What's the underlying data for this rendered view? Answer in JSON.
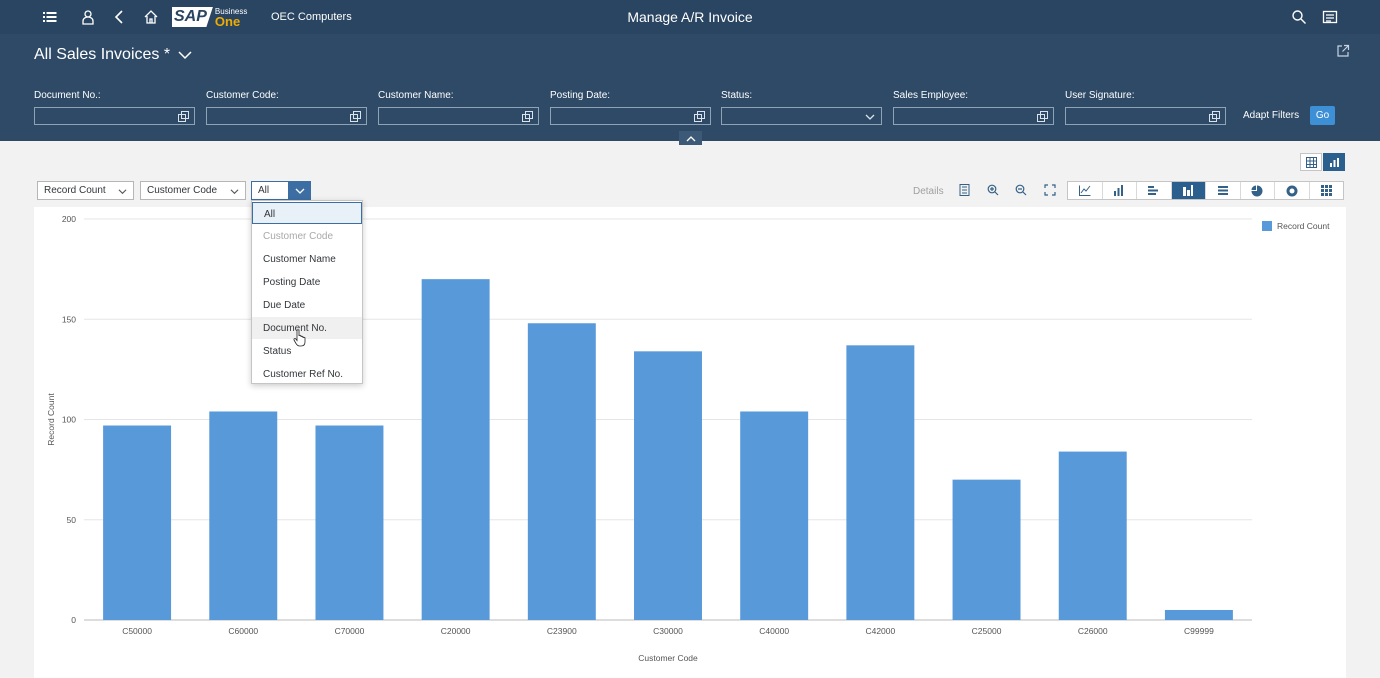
{
  "shell": {
    "logo_main": "SAP",
    "logo_business": "Business",
    "logo_one": "One",
    "company": "OEC Computers",
    "title": "Manage A/R Invoice"
  },
  "variant": {
    "title": "All Sales Invoices *"
  },
  "filters": [
    {
      "label": "Document No.:",
      "value": ""
    },
    {
      "label": "Customer Code:",
      "value": ""
    },
    {
      "label": "Customer Name:",
      "value": ""
    },
    {
      "label": "Posting Date:",
      "value": ""
    },
    {
      "label": "Status:",
      "value": ""
    },
    {
      "label": "Sales Employee:",
      "value": ""
    },
    {
      "label": "User Signature:",
      "value": ""
    }
  ],
  "filterbar": {
    "adapt_label": "Adapt Filters",
    "go_label": "Go"
  },
  "chart_toolbar": {
    "measure": "Record Count",
    "dimension": "Customer Code",
    "third": "All",
    "details_label": "Details"
  },
  "dropdown_options": [
    "All",
    "Customer Code",
    "Customer Name",
    "Posting Date",
    "Due Date",
    "Document No.",
    "Status",
    "Customer Ref No."
  ],
  "colors": {
    "bar": "#5899da",
    "shell": "#2a4561",
    "filterbar": "#2e4a66",
    "accent": "#3d6ea3"
  },
  "chart_data": {
    "type": "bar",
    "categories": [
      "C50000",
      "C60000",
      "C70000",
      "C20000",
      "C23900",
      "C30000",
      "C40000",
      "C42000",
      "C25000",
      "C26000",
      "C99999"
    ],
    "series": [
      {
        "name": "Record Count",
        "values": [
          97,
          104,
          97,
          170,
          148,
          134,
          104,
          137,
          70,
          84,
          5
        ]
      }
    ],
    "xlabel": "Customer Code",
    "ylabel": "Record Count",
    "ylim": [
      0,
      200
    ],
    "yticks": [
      "0",
      "50",
      "100",
      "150",
      "200"
    ],
    "grid": true,
    "legend": "top-right"
  }
}
